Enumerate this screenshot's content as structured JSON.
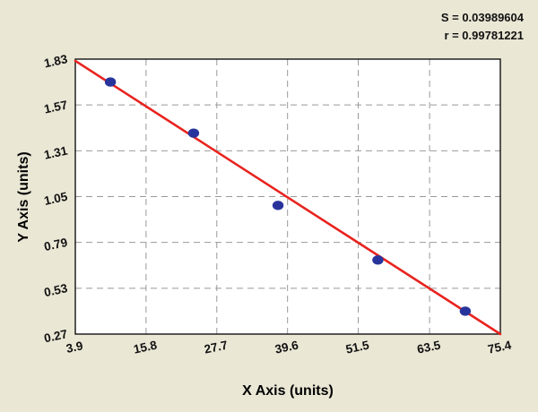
{
  "chart_data": {
    "type": "scatter",
    "title": "",
    "xlabel": "X Axis (units)",
    "ylabel": "Y Axis (units)",
    "xlim": [
      3.9,
      75.4
    ],
    "ylim": [
      0.27,
      1.83
    ],
    "x_ticks": [
      3.9,
      15.8,
      27.7,
      39.6,
      51.5,
      63.5,
      75.4
    ],
    "y_ticks": [
      0.27,
      0.53,
      0.79,
      1.05,
      1.31,
      1.57,
      1.83
    ],
    "grid": true,
    "legend": "none",
    "points": [
      {
        "x": 9.8,
        "y": 1.7
      },
      {
        "x": 23.8,
        "y": 1.41
      },
      {
        "x": 38.0,
        "y": 1.0
      },
      {
        "x": 54.8,
        "y": 0.69
      },
      {
        "x": 69.5,
        "y": 0.4
      }
    ],
    "regression_line": {
      "x1": 3.9,
      "y1": 1.82,
      "x2": 75.4,
      "y2": 0.27
    },
    "stats": {
      "s_label": "S = 0.03989604",
      "r_label": "r = 0.99781221"
    },
    "colors": {
      "background": "#eae7d5",
      "plot_bg": "#ffffff",
      "grid": "#999999",
      "border": "#000000",
      "line": "#e8231e",
      "point": "#28349b",
      "text": "#111111"
    }
  }
}
